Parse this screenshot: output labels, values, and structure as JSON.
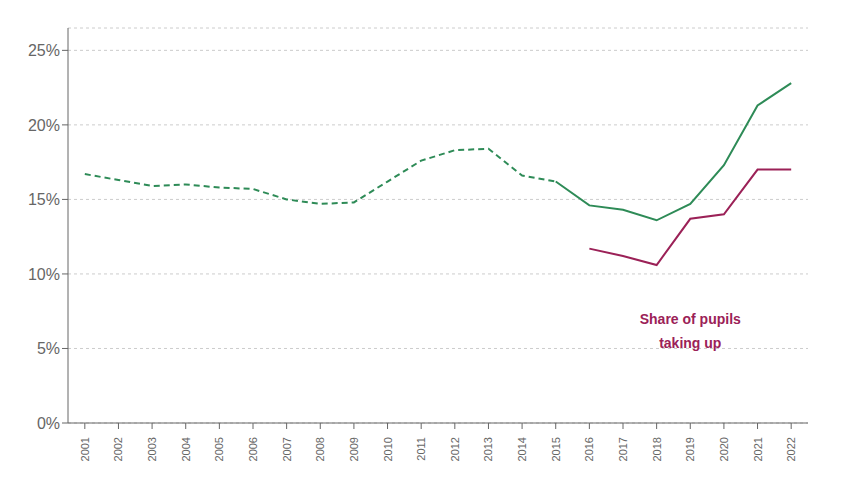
{
  "chart_data": {
    "type": "line",
    "x": [
      2001,
      2002,
      2003,
      2004,
      2005,
      2006,
      2007,
      2008,
      2009,
      2010,
      2011,
      2012,
      2013,
      2014,
      2015,
      2016,
      2017,
      2018,
      2019,
      2020,
      2021,
      2022
    ],
    "series": [
      {
        "color": "#2e8b57",
        "line_style": "dashed",
        "values": [
          0.167,
          0.163,
          0.159,
          0.16,
          0.158,
          0.157,
          0.15,
          0.147,
          0.148,
          0.162,
          0.176,
          0.183,
          0.184,
          0.166,
          0.162,
          null,
          null,
          null,
          null,
          null,
          null,
          null
        ]
      },
      {
        "color": "#2e8b57",
        "line_style": "solid",
        "values": [
          null,
          null,
          null,
          null,
          null,
          null,
          null,
          null,
          null,
          null,
          null,
          null,
          null,
          null,
          0.162,
          0.146,
          0.143,
          0.136,
          0.147,
          0.173,
          0.213,
          0.228
        ]
      },
      {
        "color": "#9b2157",
        "line_style": "solid",
        "values": [
          null,
          null,
          null,
          null,
          null,
          null,
          null,
          null,
          null,
          null,
          null,
          null,
          null,
          null,
          null,
          0.117,
          0.112,
          0.106,
          0.137,
          0.14,
          0.17,
          0.17
        ]
      }
    ],
    "annotations": [
      {
        "text": "Share of pupils\ntaking up",
        "x": 2019.0,
        "y": 0.076,
        "color": "#9b2157"
      }
    ],
    "xlim": [
      2000.5,
      2022.5
    ],
    "xticks": [
      2001,
      2002,
      2003,
      2004,
      2005,
      2006,
      2007,
      2008,
      2009,
      2010,
      2011,
      2012,
      2013,
      2014,
      2015,
      2016,
      2017,
      2018,
      2019,
      2020,
      2021,
      2022
    ],
    "ylim": [
      0,
      0.265
    ],
    "yticks": [
      {
        "value": 0,
        "label": "0%"
      },
      {
        "value": 0.05,
        "label": "5%"
      },
      {
        "value": 0.1,
        "label": "10%"
      },
      {
        "value": 0.15,
        "label": "15%"
      },
      {
        "value": 0.2,
        "label": "20%"
      },
      {
        "value": 0.25,
        "label": "25%"
      }
    ],
    "grid": true
  }
}
